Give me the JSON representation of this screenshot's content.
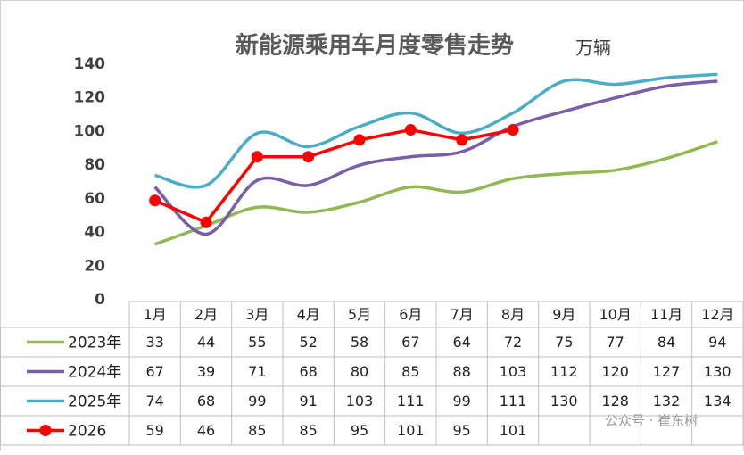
{
  "chart_data": {
    "type": "line",
    "title": "新能源乘用车月度零售走势",
    "subtitle": "万辆",
    "categories": [
      "1月",
      "2月",
      "3月",
      "4月",
      "5月",
      "6月",
      "7月",
      "8月",
      "9月",
      "10月",
      "11月",
      "12月"
    ],
    "series": [
      {
        "name": "2023年",
        "color": "#92b853",
        "smooth": true,
        "marker": false,
        "values": [
          33,
          44,
          55,
          52,
          58,
          67,
          64,
          72,
          75,
          77,
          84,
          94
        ]
      },
      {
        "name": "2024年",
        "color": "#7a5ea8",
        "smooth": true,
        "marker": false,
        "values": [
          67,
          39,
          71,
          68,
          80,
          85,
          88,
          103,
          112,
          120,
          127,
          130
        ]
      },
      {
        "name": "2025年",
        "color": "#4bacc6",
        "smooth": true,
        "marker": false,
        "values": [
          74,
          68,
          99,
          91,
          103,
          111,
          99,
          111,
          130,
          128,
          132,
          134
        ]
      },
      {
        "name": "2026",
        "color": "#ff0000",
        "smooth": false,
        "marker": true,
        "values": [
          59,
          46,
          85,
          85,
          95,
          101,
          95,
          101,
          null,
          null,
          null,
          null
        ]
      }
    ],
    "ylim": [
      0,
      140
    ],
    "yticks": [
      0,
      20,
      40,
      60,
      80,
      100,
      120,
      140
    ],
    "grid": false,
    "watermark": "公众号 · 崔东树"
  }
}
